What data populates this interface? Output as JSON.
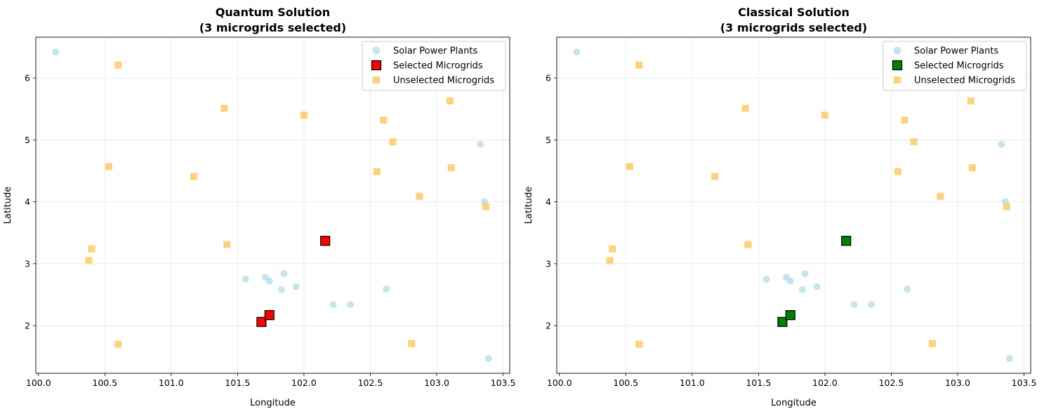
{
  "chart_data": [
    {
      "type": "scatter",
      "title_line1": "Quantum Solution",
      "title_line2": "(3 microgrids selected)",
      "xlabel": "Longitude",
      "ylabel": "Latitude",
      "xlim": [
        99.98,
        103.55
      ],
      "ylim": [
        1.23,
        6.66
      ],
      "xticks": [
        "100.0",
        "100.5",
        "101.0",
        "101.5",
        "102.0",
        "102.5",
        "103.0",
        "103.5"
      ],
      "yticks": [
        "2",
        "3",
        "4",
        "5",
        "6"
      ],
      "grid": true,
      "legend_position": "top-right",
      "selected_color": "#ff0000",
      "series": [
        {
          "name": "Solar Power Plants",
          "marker": "circle",
          "color": "#add8e6",
          "points": [
            [
              100.13,
              6.42
            ],
            [
              101.56,
              2.75
            ],
            [
              101.71,
              2.78
            ],
            [
              101.74,
              2.72
            ],
            [
              101.85,
              2.84
            ],
            [
              101.83,
              2.58
            ],
            [
              101.94,
              2.63
            ],
            [
              102.22,
              2.34
            ],
            [
              102.35,
              2.34
            ],
            [
              102.62,
              2.59
            ],
            [
              103.33,
              4.93
            ],
            [
              103.36,
              4.0
            ],
            [
              103.39,
              1.47
            ]
          ]
        },
        {
          "name": "Selected Microgrids",
          "marker": "square",
          "color": "#ff0000",
          "points": [
            [
              101.68,
              2.06
            ],
            [
              101.74,
              2.17
            ],
            [
              102.16,
              3.37
            ]
          ]
        },
        {
          "name": "Unselected Microgrids",
          "marker": "square",
          "color": "#ffc966",
          "points": [
            [
              100.6,
              6.21
            ],
            [
              101.4,
              5.51
            ],
            [
              102.0,
              5.4
            ],
            [
              102.6,
              5.32
            ],
            [
              103.1,
              5.63
            ],
            [
              102.67,
              4.97
            ],
            [
              100.53,
              4.57
            ],
            [
              101.17,
              4.41
            ],
            [
              102.55,
              4.49
            ],
            [
              103.11,
              4.55
            ],
            [
              102.87,
              4.09
            ],
            [
              103.37,
              3.92
            ],
            [
              100.4,
              3.24
            ],
            [
              100.38,
              3.05
            ],
            [
              101.42,
              3.31
            ],
            [
              100.6,
              1.7
            ],
            [
              102.81,
              1.71
            ]
          ]
        }
      ]
    },
    {
      "type": "scatter",
      "title_line1": "Classical Solution",
      "title_line2": "(3 microgrids selected)",
      "xlabel": "Longitude",
      "ylabel": "Latitude",
      "xlim": [
        99.98,
        103.55
      ],
      "ylim": [
        1.23,
        6.66
      ],
      "xticks": [
        "100.0",
        "100.5",
        "101.0",
        "101.5",
        "102.0",
        "102.5",
        "103.0",
        "103.5"
      ],
      "yticks": [
        "2",
        "3",
        "4",
        "5",
        "6"
      ],
      "grid": true,
      "legend_position": "top-right",
      "selected_color": "#008000",
      "series": [
        {
          "name": "Solar Power Plants",
          "marker": "circle",
          "color": "#add8e6",
          "points": [
            [
              100.13,
              6.42
            ],
            [
              101.56,
              2.75
            ],
            [
              101.71,
              2.78
            ],
            [
              101.74,
              2.72
            ],
            [
              101.85,
              2.84
            ],
            [
              101.83,
              2.58
            ],
            [
              101.94,
              2.63
            ],
            [
              102.22,
              2.34
            ],
            [
              102.35,
              2.34
            ],
            [
              102.62,
              2.59
            ],
            [
              103.33,
              4.93
            ],
            [
              103.36,
              4.0
            ],
            [
              103.39,
              1.47
            ]
          ]
        },
        {
          "name": "Selected Microgrids",
          "marker": "square",
          "color": "#008000",
          "points": [
            [
              101.68,
              2.06
            ],
            [
              101.74,
              2.17
            ],
            [
              102.16,
              3.37
            ]
          ]
        },
        {
          "name": "Unselected Microgrids",
          "marker": "square",
          "color": "#ffc966",
          "points": [
            [
              100.6,
              6.21
            ],
            [
              101.4,
              5.51
            ],
            [
              102.0,
              5.4
            ],
            [
              102.6,
              5.32
            ],
            [
              103.1,
              5.63
            ],
            [
              102.67,
              4.97
            ],
            [
              100.53,
              4.57
            ],
            [
              101.17,
              4.41
            ],
            [
              102.55,
              4.49
            ],
            [
              103.11,
              4.55
            ],
            [
              102.87,
              4.09
            ],
            [
              103.37,
              3.92
            ],
            [
              100.4,
              3.24
            ],
            [
              100.38,
              3.05
            ],
            [
              101.42,
              3.31
            ],
            [
              100.6,
              1.7
            ],
            [
              102.81,
              1.71
            ]
          ]
        }
      ]
    }
  ]
}
